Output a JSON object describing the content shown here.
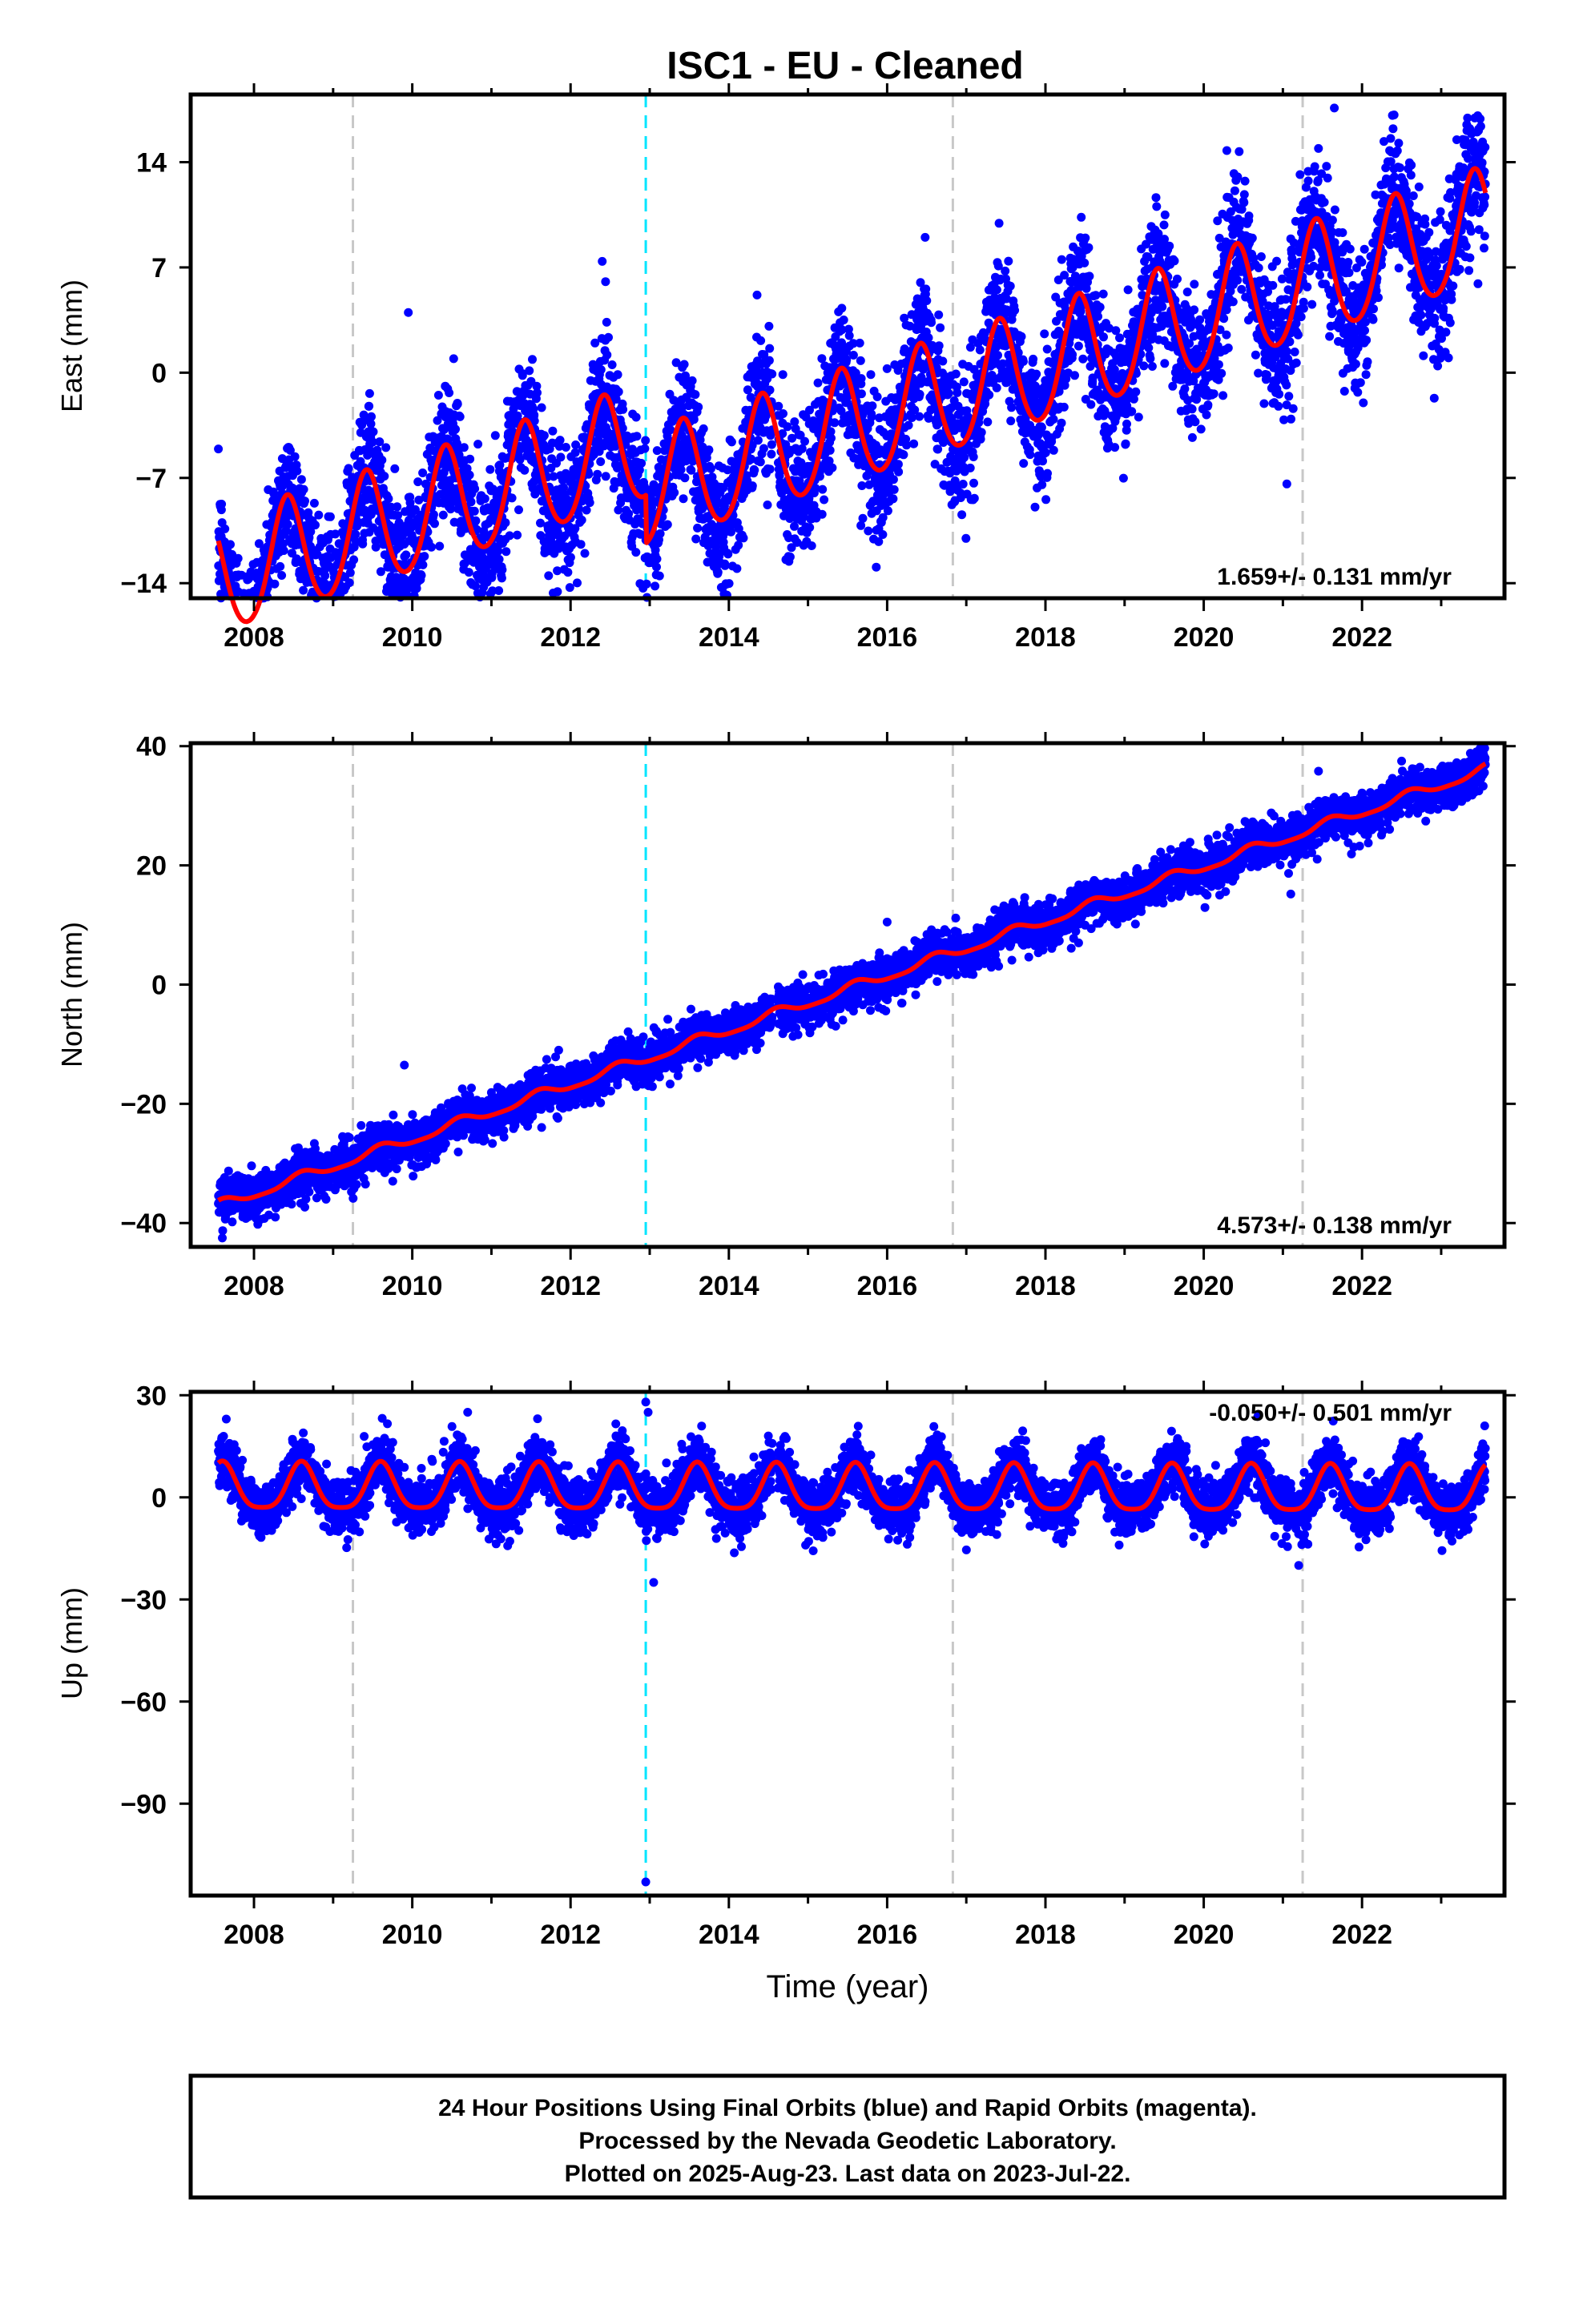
{
  "title": "ISC1  - EU - Cleaned",
  "footer": {
    "lines": [
      "24 Hour Positions Using Final Orbits (blue) and Rapid Orbits (magenta).",
      "Processed by the Nevada Geodetic Laboratory.",
      "Plotted on 2025-Aug-23. Last data on 2023-Jul-22."
    ]
  },
  "colors": {
    "final_orbit_points": "#0000ff",
    "model_line": "#ff0000",
    "equipment_change_line": "#c8c8c8",
    "earthquake_line": "#00e5ff"
  },
  "chart_data": [
    {
      "type": "scatter",
      "name": "east",
      "ylabel": "East (mm)",
      "xlabel": "",
      "xlim": [
        2007.2,
        2023.8
      ],
      "ylim": [
        -15,
        18.5
      ],
      "yticks": [
        -14,
        -7,
        0,
        7,
        14
      ],
      "xticks": [
        2008,
        2010,
        2012,
        2014,
        2016,
        2018,
        2020,
        2022
      ],
      "rate_label": "1.659+/- 0.131 mm/yr",
      "rate_label_position": "bottom-right",
      "model": {
        "rate": 1.659,
        "ref_year": 2015.6,
        "ref_value": -0.4,
        "annual_amplitude": 3.8,
        "annual_peak": 0.42,
        "semiannual_amplitude": 0.4,
        "offsets": [
          {
            "year": 2012.95,
            "value": -3.2
          }
        ]
      },
      "scatter": 2.2,
      "outliers": [
        [
          2012.4,
          7.4
        ],
        [
          2021.05,
          -7.4
        ],
        [
          2016.48,
          9.0
        ],
        [
          2021.65,
          17.6
        ],
        [
          2021.05,
          3.0
        ],
        [
          2009.95,
          4.0
        ],
        [
          2008.7,
          -12.5
        ]
      ],
      "equipment_changes": [
        2009.25,
        2016.83,
        2021.25
      ],
      "earthquakes": [
        2012.95
      ]
    },
    {
      "type": "scatter",
      "name": "north",
      "ylabel": "North (mm)",
      "xlabel": "",
      "xlim": [
        2007.2,
        2023.8
      ],
      "ylim": [
        -44,
        40.5
      ],
      "yticks": [
        -40,
        -20,
        0,
        20,
        40
      ],
      "xticks": [
        2008,
        2010,
        2012,
        2014,
        2016,
        2018,
        2020,
        2022
      ],
      "rate_label": "4.573+/- 0.138 mm/yr",
      "rate_label_position": "bottom-right",
      "model": {
        "rate": 4.573,
        "ref_year": 2014.9,
        "ref_value": -3.5,
        "annual_amplitude": 0.8,
        "annual_peak": 0.6,
        "semiannual_amplitude": 0.2,
        "offsets": []
      },
      "scatter": 1.8,
      "outliers": [
        [
          2009.9,
          -13.5
        ],
        [
          2011.85,
          -11.0
        ],
        [
          2021.1,
          15.2
        ],
        [
          2021.45,
          35.8
        ],
        [
          2022.5,
          37.5
        ],
        [
          2016.0,
          10.5
        ],
        [
          2007.6,
          -42.5
        ]
      ],
      "equipment_changes": [
        2009.25,
        2016.83,
        2021.25
      ],
      "earthquakes": [
        2012.95
      ]
    },
    {
      "type": "scatter",
      "name": "up",
      "ylabel": "Up (mm)",
      "xlabel": "Time (year)",
      "xlim": [
        2007.2,
        2023.8
      ],
      "ylim": [
        -117,
        31
      ],
      "yticks": [
        -90,
        -60,
        -30,
        0,
        30
      ],
      "xticks": [
        2008,
        2010,
        2012,
        2014,
        2016,
        2018,
        2020,
        2022
      ],
      "rate_label": "-0.050+/- 0.501 mm/yr",
      "rate_label_position": "top-right",
      "model": {
        "rate": -0.05,
        "ref_year": 2015.6,
        "ref_value": 2.0,
        "annual_amplitude": 6.8,
        "annual_peak": 0.6,
        "semiannual_amplitude": 1.5,
        "offsets": []
      },
      "scatter": 4.0,
      "outliers": [
        [
          2012.95,
          -113.0
        ],
        [
          2013.05,
          -25.0
        ],
        [
          2012.95,
          28.0
        ],
        [
          2012.98,
          25.0
        ],
        [
          2021.2,
          -20.0
        ],
        [
          2007.65,
          23.0
        ],
        [
          2023.55,
          21.0
        ],
        [
          2010.7,
          25.0
        ]
      ],
      "equipment_changes": [
        2009.25,
        2016.83,
        2021.25
      ],
      "earthquakes": [
        2012.95
      ]
    }
  ]
}
